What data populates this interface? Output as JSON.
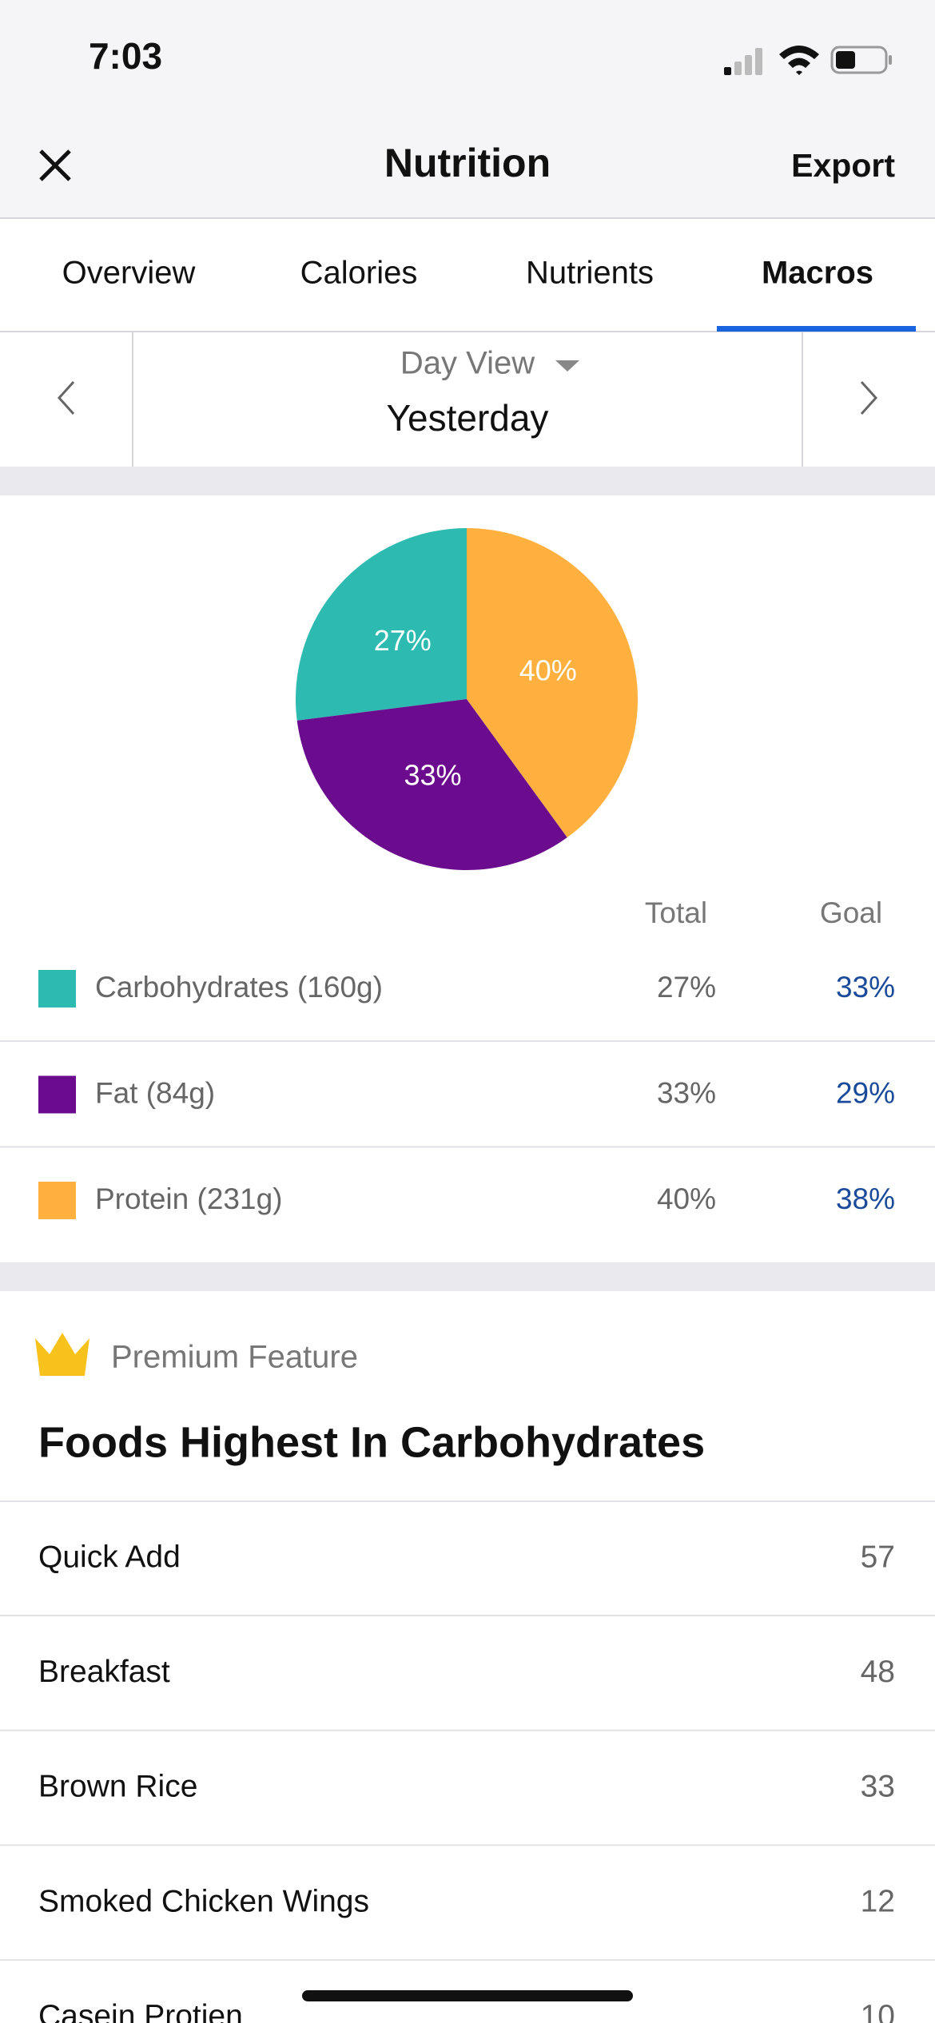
{
  "status_bar": {
    "time": "7:03"
  },
  "nav": {
    "title": "Nutrition",
    "action": "Export"
  },
  "tabs": [
    "Overview",
    "Calories",
    "Nutrients",
    "Macros"
  ],
  "date_nav": {
    "view": "Day View",
    "date": "Yesterday"
  },
  "chart_data": {
    "type": "pie",
    "values": [
      27,
      33,
      40
    ],
    "value_labels": [
      "27%",
      "33%",
      "40%"
    ],
    "colors": [
      "#2dbab0",
      "#6b0c8f",
      "#ffb03f"
    ]
  },
  "macros_table": {
    "columns": [
      "Total",
      "Goal"
    ],
    "rows": [
      [
        "Carbohydrates (160g)",
        "27%",
        "33%"
      ],
      [
        "Fat (84g)",
        "33%",
        "29%"
      ],
      [
        "Protein (231g)",
        "40%",
        "38%"
      ]
    ]
  },
  "premium": {
    "badge": "Premium Feature",
    "title": "Foods Highest In Carbohydrates",
    "rows": [
      [
        "Quick Add",
        "57"
      ],
      [
        "Breakfast",
        "48"
      ],
      [
        "Brown Rice",
        "33"
      ],
      [
        "Smoked Chicken Wings",
        "12"
      ],
      [
        "Casein Protien",
        "10"
      ]
    ]
  }
}
